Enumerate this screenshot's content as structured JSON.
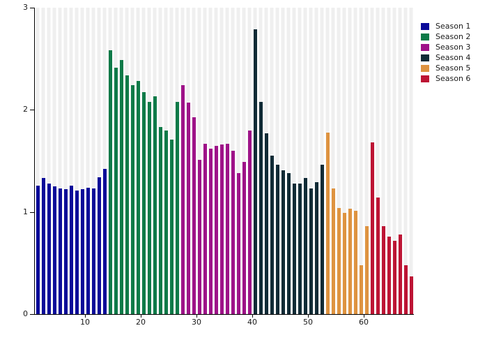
{
  "chart_data": {
    "type": "bar",
    "title": "",
    "xlabel": "",
    "ylabel": "",
    "x_unit": "episode_index",
    "ylim": [
      0,
      3
    ],
    "yticks": [
      0,
      1,
      2,
      3
    ],
    "xticks": [
      10,
      20,
      30,
      40,
      50,
      60
    ],
    "bar_slot_count": 68,
    "legend_position": "top-right",
    "grid": "vertical-stripes",
    "series": [
      {
        "name": "Season 1",
        "color": "#0a0a99",
        "x_start": 1,
        "values": [
          1.26,
          1.33,
          1.28,
          1.25,
          1.23,
          1.22,
          1.26,
          1.21,
          1.22,
          1.24,
          1.23,
          1.34,
          1.42
        ]
      },
      {
        "name": "Season 2",
        "color": "#0d7a48",
        "x_start": 14,
        "values": [
          2.58,
          2.41,
          2.49,
          2.34,
          2.24,
          2.28,
          2.17,
          2.08,
          2.13,
          1.83,
          1.8,
          1.71,
          2.08
        ]
      },
      {
        "name": "Season 3",
        "color": "#9e1288",
        "x_start": 27,
        "values": [
          2.24,
          2.07,
          1.93,
          1.51,
          1.67,
          1.62,
          1.65,
          1.66,
          1.67,
          1.6,
          1.38,
          1.49,
          1.8
        ]
      },
      {
        "name": "Season 4",
        "color": "#102b36",
        "x_start": 40,
        "values": [
          2.79,
          2.08,
          1.77,
          1.55,
          1.46,
          1.41,
          1.38,
          1.28,
          1.28,
          1.33,
          1.23,
          1.29,
          1.46
        ]
      },
      {
        "name": "Season 5",
        "color": "#de9340",
        "x_start": 53,
        "values": [
          1.78,
          1.23,
          1.04,
          0.99,
          1.03,
          1.01,
          0.48,
          0.86
        ]
      },
      {
        "name": "Season 6",
        "color": "#bd1434",
        "x_start": 61,
        "values": [
          1.68,
          1.14,
          0.86,
          0.76,
          0.72,
          0.78,
          0.48,
          0.37
        ]
      }
    ],
    "plot_style": {
      "stripe_color": "#efefef",
      "background": "#ffffff",
      "axis_color": "#000000"
    }
  }
}
